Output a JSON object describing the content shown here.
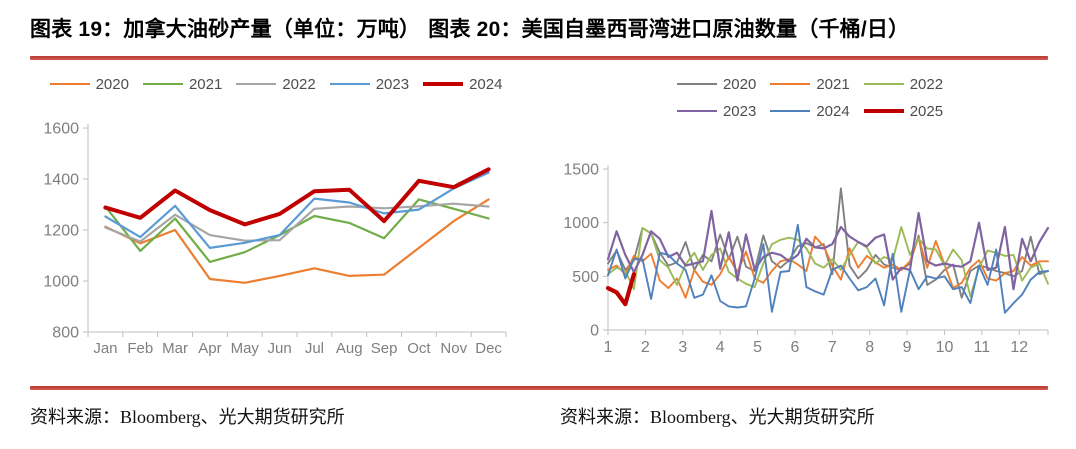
{
  "header": {
    "title_left": "图表 19：加拿大油砂产量（单位：万吨）",
    "title_right": "图表 20：美国自墨西哥湾进口原油数量（千桶/日）"
  },
  "accent": {
    "divider_color": "#C9413A",
    "emphasis_line_color": "#C00000"
  },
  "footer": {
    "source_left": "资料来源：Bloomberg、光大期货研究所",
    "source_right": "资料来源：Bloomberg、光大期货研究所"
  },
  "chart_data": [
    {
      "type": "line",
      "title": "图表 19：加拿大油砂产量（单位：万吨）",
      "unit": "万吨",
      "x_mode": "category",
      "categories": [
        "Jan",
        "Feb",
        "Mar",
        "Apr",
        "May",
        "Jun",
        "Jul",
        "Aug",
        "Sep",
        "Oct",
        "Nov",
        "Dec"
      ],
      "ylim": [
        800,
        1600
      ],
      "yticks": [
        800,
        1000,
        1200,
        1400,
        1600
      ],
      "grid": false,
      "legend_position": "top",
      "legend_rows": [
        [
          "2020",
          "2021",
          "2022",
          "2023",
          "2024"
        ]
      ],
      "series": [
        {
          "name": "2020",
          "color": "#ED7D31",
          "width": 2.2,
          "values": [
            1213,
            1148,
            1200,
            1008,
            993,
            1020,
            1050,
            1020,
            1025,
            1130,
            1235,
            1320
          ]
        },
        {
          "name": "2021",
          "color": "#70AD47",
          "width": 2.2,
          "values": [
            1292,
            1118,
            1245,
            1075,
            1113,
            1180,
            1255,
            1228,
            1168,
            1320,
            1283,
            1245
          ]
        },
        {
          "name": "2022",
          "color": "#A6A6A6",
          "width": 2.2,
          "values": [
            1210,
            1155,
            1260,
            1180,
            1158,
            1160,
            1283,
            1292,
            1285,
            1293,
            1303,
            1292
          ]
        },
        {
          "name": "2023",
          "color": "#5B9BD5",
          "width": 2.2,
          "values": [
            1253,
            1172,
            1295,
            1130,
            1150,
            1180,
            1323,
            1308,
            1265,
            1280,
            1363,
            1425
          ]
        },
        {
          "name": "2024",
          "color": "#C00000",
          "width": 4,
          "values": [
            1288,
            1248,
            1355,
            1278,
            1222,
            1263,
            1352,
            1358,
            1235,
            1393,
            1368,
            1438
          ]
        }
      ]
    },
    {
      "type": "line",
      "title": "图表 20：美国自墨西哥湾进口原油数量（千桶/日）",
      "unit": "千桶/日",
      "x_mode": "weekly",
      "weeks_per_year": 52,
      "xticks": [
        1,
        2,
        3,
        4,
        5,
        6,
        7,
        8,
        9,
        10,
        11,
        12
      ],
      "ylim": [
        0,
        1500
      ],
      "yticks": [
        0,
        500,
        1000,
        1500
      ],
      "grid": false,
      "legend_position": "top",
      "legend_rows": [
        [
          "2020",
          "2021",
          "2022"
        ],
        [
          "2023",
          "2024",
          "2025"
        ]
      ],
      "series": [
        {
          "name": "2020",
          "color": "#808080",
          "width": 1.9,
          "values": [
            620,
            740,
            560,
            650,
            950,
            900,
            720,
            600,
            630,
            820,
            560,
            700,
            640,
            890,
            660,
            870,
            590,
            550,
            880,
            640,
            580,
            650,
            780,
            810,
            770,
            800,
            520,
            1320,
            600,
            480,
            560,
            700,
            610,
            580,
            560,
            620,
            880,
            420,
            470,
            560,
            610,
            300,
            550,
            600,
            580,
            550,
            530,
            500,
            550,
            870,
            520,
            550
          ]
        },
        {
          "name": "2021",
          "color": "#ED7D31",
          "width": 1.9,
          "values": [
            560,
            600,
            520,
            690,
            640,
            710,
            460,
            390,
            480,
            300,
            560,
            450,
            420,
            520,
            680,
            540,
            730,
            480,
            440,
            550,
            640,
            660,
            610,
            550,
            870,
            780,
            600,
            470,
            760,
            580,
            690,
            630,
            580,
            610,
            560,
            640,
            860,
            580,
            830,
            610,
            390,
            440,
            580,
            650,
            480,
            460,
            530,
            550,
            680,
            600,
            640,
            640
          ]
        },
        {
          "name": "2022",
          "color": "#9BBB59",
          "width": 1.9,
          "values": [
            520,
            580,
            550,
            380,
            950,
            900,
            650,
            580,
            420,
            610,
            720,
            560,
            700,
            760,
            540,
            480,
            430,
            400,
            620,
            800,
            840,
            860,
            840,
            760,
            620,
            580,
            660,
            560,
            700,
            820,
            770,
            620,
            680,
            650,
            960,
            700,
            850,
            760,
            750,
            600,
            750,
            650,
            310,
            580,
            740,
            720,
            690,
            700,
            460,
            580,
            620,
            430
          ]
        },
        {
          "name": "2023",
          "color": "#8064A2",
          "width": 2.2,
          "values": [
            660,
            920,
            700,
            540,
            700,
            920,
            850,
            680,
            720,
            600,
            620,
            640,
            1110,
            570,
            910,
            460,
            890,
            560,
            680,
            720,
            700,
            640,
            700,
            850,
            770,
            760,
            800,
            960,
            870,
            820,
            780,
            860,
            890,
            470,
            580,
            560,
            1090,
            640,
            600,
            620,
            600,
            590,
            640,
            1000,
            560,
            580,
            960,
            380,
            850,
            640,
            820,
            950
          ]
        },
        {
          "name": "2024",
          "color": "#4F81BD",
          "width": 1.9,
          "values": [
            510,
            750,
            480,
            660,
            660,
            290,
            720,
            700,
            620,
            560,
            300,
            330,
            510,
            270,
            220,
            210,
            220,
            480,
            800,
            170,
            540,
            550,
            980,
            400,
            360,
            330,
            560,
            600,
            480,
            370,
            400,
            480,
            230,
            710,
            170,
            560,
            380,
            500,
            480,
            500,
            380,
            400,
            250,
            600,
            420,
            750,
            160,
            250,
            330,
            470,
            540,
            550
          ]
        },
        {
          "name": "2025",
          "color": "#C00000",
          "width": 4.2,
          "values": [
            390,
            350,
            240,
            520
          ]
        }
      ]
    }
  ]
}
